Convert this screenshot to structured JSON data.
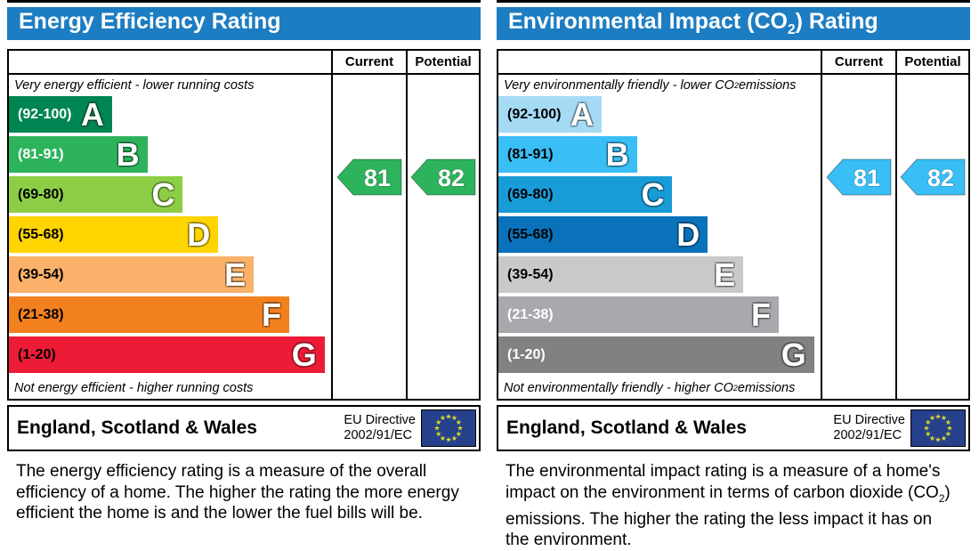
{
  "colors": {
    "header_bg": "#1d7dc2",
    "border": "#000000",
    "eu_flag_blue": "#26408b",
    "eu_flag_star": "#dfdd28"
  },
  "panels": [
    {
      "title": {
        "pre": "Energy Efficiency Rating",
        "sub": "",
        "post": ""
      },
      "col_current": "Current",
      "col_potential": "Potential",
      "top_caption": {
        "pre": "Very energy efficient - lower running costs",
        "sub": "",
        "post": ""
      },
      "bottom_caption": {
        "pre": "Not energy efficient - higher running costs",
        "sub": "",
        "post": ""
      },
      "bands": [
        {
          "range": "(92-100)",
          "letter": "A",
          "color": "#008552",
          "width_pct": 32,
          "range_color": "#ffffff"
        },
        {
          "range": "(81-91)",
          "letter": "B",
          "color": "#2eb35d",
          "width_pct": 43,
          "range_color": "#ffffff"
        },
        {
          "range": "(69-80)",
          "letter": "C",
          "color": "#8dce46",
          "width_pct": 54,
          "range_color": "#000000"
        },
        {
          "range": "(55-68)",
          "letter": "D",
          "color": "#fed401",
          "width_pct": 65,
          "range_color": "#000000"
        },
        {
          "range": "(39-54)",
          "letter": "E",
          "color": "#fbb16a",
          "width_pct": 76,
          "range_color": "#000000"
        },
        {
          "range": "(21-38)",
          "letter": "F",
          "color": "#f3801e",
          "width_pct": 87,
          "range_color": "#000000"
        },
        {
          "range": "(1-20)",
          "letter": "G",
          "color": "#ed1b35",
          "width_pct": 98,
          "range_color": "#000000"
        }
      ],
      "current": {
        "value": "81",
        "color": "#2eb35d"
      },
      "potential": {
        "value": "82",
        "color": "#2eb35d"
      },
      "footer": {
        "region": "England, Scotland & Wales",
        "directive_line1": "EU Directive",
        "directive_line2": "2002/91/EC"
      },
      "description": {
        "pre": "The energy efficiency rating is a measure of the overall efficiency of a home. The higher the rating the more energy efficient the home is and the lower the fuel bills will be.",
        "sub": "",
        "post": ""
      }
    },
    {
      "title": {
        "pre": "Environmental Impact (CO",
        "sub": "2",
        "post": ") Rating"
      },
      "col_current": "Current",
      "col_potential": "Potential",
      "top_caption": {
        "pre": "Very environmentally friendly - lower CO",
        "sub": "2",
        "post": " emissions"
      },
      "bottom_caption": {
        "pre": "Not environmentally friendly - higher CO",
        "sub": "2",
        "post": " emissions"
      },
      "bands": [
        {
          "range": "(92-100)",
          "letter": "A",
          "color": "#a5daf5",
          "width_pct": 32,
          "range_color": "#000000"
        },
        {
          "range": "(81-91)",
          "letter": "B",
          "color": "#39bef5",
          "width_pct": 43,
          "range_color": "#000000"
        },
        {
          "range": "(69-80)",
          "letter": "C",
          "color": "#189cd8",
          "width_pct": 54,
          "range_color": "#000000"
        },
        {
          "range": "(55-68)",
          "letter": "D",
          "color": "#0a72ba",
          "width_pct": 65,
          "range_color": "#000000"
        },
        {
          "range": "(39-54)",
          "letter": "E",
          "color": "#c8c9cb",
          "width_pct": 76,
          "range_color": "#000000"
        },
        {
          "range": "(21-38)",
          "letter": "F",
          "color": "#a7a9ac",
          "width_pct": 87,
          "range_color": "#ffffff"
        },
        {
          "range": "(1-20)",
          "letter": "G",
          "color": "#7f8183",
          "width_pct": 98,
          "range_color": "#ffffff"
        }
      ],
      "current": {
        "value": "81",
        "color": "#39bef5"
      },
      "potential": {
        "value": "82",
        "color": "#39bef5"
      },
      "footer": {
        "region": "England, Scotland & Wales",
        "directive_line1": "EU Directive",
        "directive_line2": "2002/91/EC"
      },
      "description": {
        "pre": "The environmental impact rating is a measure of a home's impact on the environment in terms of carbon dioxide (CO",
        "sub": "2",
        "post": ") emissions. The higher the rating the less impact it has on the environment."
      }
    }
  ],
  "chart_data": [
    {
      "type": "bar",
      "title": "Energy Efficiency Rating",
      "categories": [
        "A (92-100)",
        "B (81-91)",
        "C (69-80)",
        "D (55-68)",
        "E (39-54)",
        "F (21-38)",
        "G (1-20)"
      ],
      "band_ranges": [
        [
          92,
          100
        ],
        [
          81,
          91
        ],
        [
          69,
          80
        ],
        [
          55,
          68
        ],
        [
          39,
          54
        ],
        [
          21,
          38
        ],
        [
          1,
          20
        ]
      ],
      "band_bar_relative_widths_pct": [
        32,
        43,
        54,
        65,
        76,
        87,
        98
      ],
      "series": [
        {
          "name": "Current",
          "values": [
            81
          ],
          "band": "B"
        },
        {
          "name": "Potential",
          "values": [
            82
          ],
          "band": "B"
        }
      ],
      "top_annotation": "Very energy efficient - lower running costs",
      "bottom_annotation": "Not energy efficient - higher running costs",
      "footer": "England, Scotland & Wales — EU Directive 2002/91/EC",
      "xlabel": "",
      "ylabel": "",
      "legend_position": "top-right-columns",
      "grid": false
    },
    {
      "type": "bar",
      "title": "Environmental Impact (CO2) Rating",
      "categories": [
        "A (92-100)",
        "B (81-91)",
        "C (69-80)",
        "D (55-68)",
        "E (39-54)",
        "F (21-38)",
        "G (1-20)"
      ],
      "band_ranges": [
        [
          92,
          100
        ],
        [
          81,
          91
        ],
        [
          69,
          80
        ],
        [
          55,
          68
        ],
        [
          39,
          54
        ],
        [
          21,
          38
        ],
        [
          1,
          20
        ]
      ],
      "band_bar_relative_widths_pct": [
        32,
        43,
        54,
        65,
        76,
        87,
        98
      ],
      "series": [
        {
          "name": "Current",
          "values": [
            81
          ],
          "band": "B"
        },
        {
          "name": "Potential",
          "values": [
            82
          ],
          "band": "B"
        }
      ],
      "top_annotation": "Very environmentally friendly - lower CO2 emissions",
      "bottom_annotation": "Not environmentally friendly - higher CO2 emissions",
      "footer": "England, Scotland & Wales — EU Directive 2002/91/EC",
      "xlabel": "",
      "ylabel": "",
      "legend_position": "top-right-columns",
      "grid": false
    }
  ]
}
